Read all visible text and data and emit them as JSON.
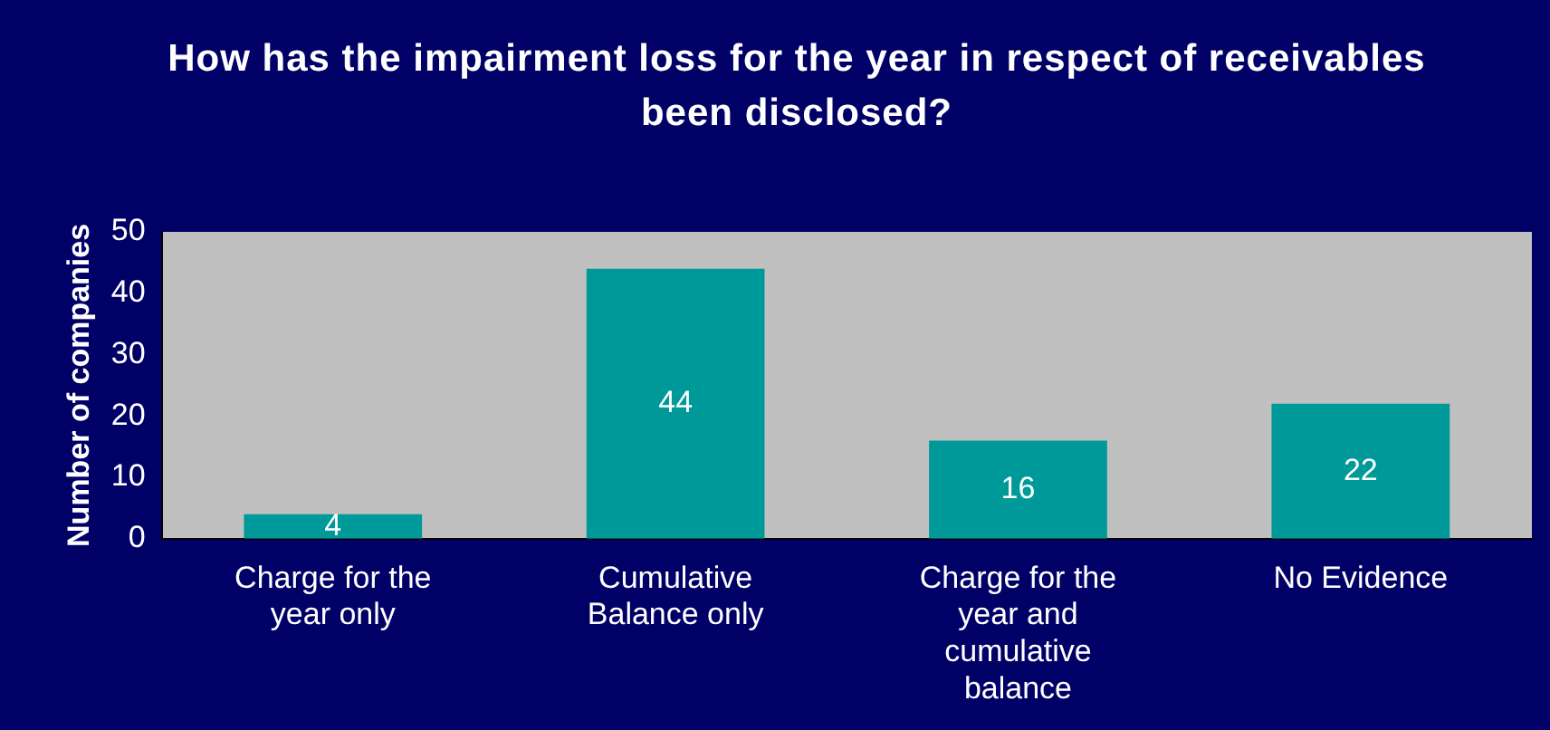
{
  "chart_data": {
    "type": "bar",
    "title": "How has the impairment loss for the year in respect of receivables been disclosed?",
    "ylabel": "Number of companies",
    "categories": [
      "Charge for the year only",
      "Cumulative Balance only",
      "Charge for the year and cumulative balance",
      "No Evidence"
    ],
    "values": [
      4,
      44,
      16,
      22
    ],
    "color": "#009999",
    "ylim": [
      0,
      50
    ],
    "yticks": [
      0,
      10,
      20,
      30,
      40,
      50
    ],
    "grid": false,
    "legend": false,
    "data_labels": true
  }
}
